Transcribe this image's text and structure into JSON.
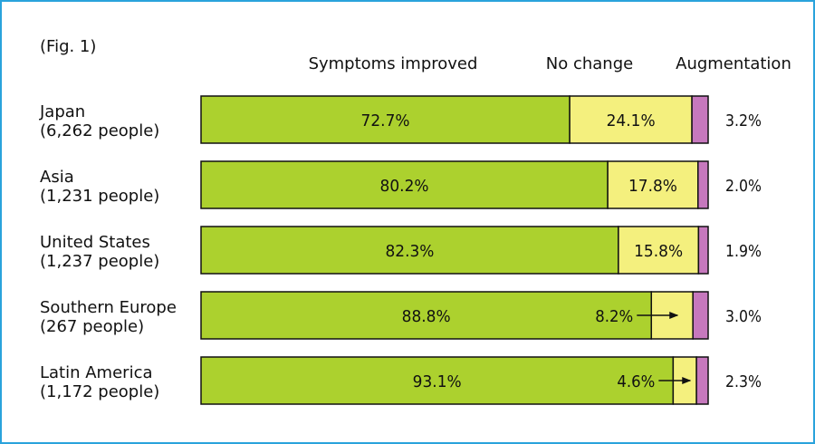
{
  "figure_label": "(Fig. 1)",
  "chart_data": {
    "type": "bar",
    "stacked": true,
    "orientation": "horizontal",
    "unit": "%",
    "categories": [
      {
        "name": "Japan",
        "sub": "(6,262 people)"
      },
      {
        "name": "Asia",
        "sub": "(1,231 people)"
      },
      {
        "name": "United States",
        "sub": "(1,237 people)"
      },
      {
        "name": "Southern Europe",
        "sub": "(267 people)"
      },
      {
        "name": "Latin America",
        "sub": "(1,172 people)"
      }
    ],
    "series": [
      {
        "name": "Symptoms improved",
        "color": "#acd12e",
        "values": [
          72.7,
          80.2,
          82.3,
          88.8,
          93.1
        ]
      },
      {
        "name": "No change",
        "color": "#f4f07e",
        "values": [
          24.1,
          17.8,
          15.8,
          8.2,
          4.6
        ]
      },
      {
        "name": "Augmentation",
        "color": "#c678bd",
        "values": [
          3.2,
          2.0,
          1.9,
          3.0,
          2.3
        ]
      }
    ],
    "labels": [
      [
        "72.7%",
        "24.1%",
        "3.2%"
      ],
      [
        "80.2%",
        "17.8%",
        "2.0%"
      ],
      [
        "82.3%",
        "15.8%",
        "1.9%"
      ],
      [
        "88.8%",
        "8.2%",
        "3.0%"
      ],
      [
        "93.1%",
        "4.6%",
        "2.3%"
      ]
    ],
    "arrow_rows": [
      3,
      4
    ],
    "xlim": [
      0,
      100
    ],
    "legend_position": "top"
  }
}
